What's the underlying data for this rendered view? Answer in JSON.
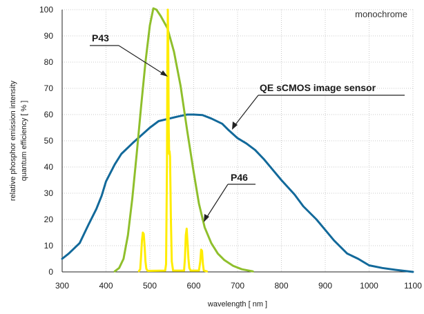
{
  "chart_data": {
    "type": "line",
    "xlabel": "wavelength [ nm ]",
    "ylabel": [
      "relative phosphor emission intensity",
      "quantum efficiency [ % ]"
    ],
    "xlim": [
      300,
      1100
    ],
    "ylim": [
      0,
      100
    ],
    "xticks": [
      300,
      400,
      500,
      600,
      700,
      800,
      900,
      1000,
      1100
    ],
    "yticks": [
      0,
      10,
      20,
      30,
      40,
      50,
      60,
      70,
      80,
      90,
      100
    ],
    "grid": "dotted",
    "corner_note": "monochrome",
    "annotations": [
      {
        "text": "P43",
        "series": "P43"
      },
      {
        "text": "QE sCMOS image sensor",
        "series": "QE sCMOS image sensor"
      },
      {
        "text": "P46",
        "series": "P46"
      }
    ],
    "series": [
      {
        "name": "QE sCMOS image sensor",
        "color": "#12699a",
        "points": [
          [
            300,
            5
          ],
          [
            315,
            7
          ],
          [
            340,
            11
          ],
          [
            360,
            18
          ],
          [
            378,
            24
          ],
          [
            390,
            29
          ],
          [
            400,
            34.5
          ],
          [
            420,
            41
          ],
          [
            435,
            45
          ],
          [
            460,
            49
          ],
          [
            480,
            52
          ],
          [
            500,
            55
          ],
          [
            520,
            57.5
          ],
          [
            545,
            58.5
          ],
          [
            565,
            59.3
          ],
          [
            585,
            60
          ],
          [
            600,
            60
          ],
          [
            620,
            59.8
          ],
          [
            640,
            58.5
          ],
          [
            665,
            56.5
          ],
          [
            680,
            54
          ],
          [
            700,
            51
          ],
          [
            720,
            49
          ],
          [
            740,
            46.5
          ],
          [
            760,
            43
          ],
          [
            780,
            39
          ],
          [
            800,
            35
          ],
          [
            830,
            29.5
          ],
          [
            850,
            25
          ],
          [
            880,
            20
          ],
          [
            900,
            16
          ],
          [
            920,
            12
          ],
          [
            950,
            7
          ],
          [
            975,
            5
          ],
          [
            1000,
            2.5
          ],
          [
            1030,
            1.5
          ],
          [
            1060,
            0.8
          ],
          [
            1100,
            0
          ]
        ]
      },
      {
        "name": "P46",
        "color": "#8fbf2c",
        "points": [
          [
            420,
            0.2
          ],
          [
            430,
            1.5
          ],
          [
            440,
            5
          ],
          [
            450,
            14
          ],
          [
            460,
            28
          ],
          [
            470,
            45
          ],
          [
            480,
            63
          ],
          [
            490,
            80
          ],
          [
            500,
            94
          ],
          [
            508,
            100.5
          ],
          [
            515,
            100
          ],
          [
            525,
            97.5
          ],
          [
            540,
            93
          ],
          [
            555,
            84
          ],
          [
            570,
            71
          ],
          [
            585,
            54
          ],
          [
            600,
            38
          ],
          [
            612,
            26
          ],
          [
            625,
            17
          ],
          [
            640,
            11
          ],
          [
            655,
            7
          ],
          [
            670,
            4.5
          ],
          [
            690,
            2.3
          ],
          [
            710,
            1
          ],
          [
            735,
            0.2
          ]
        ]
      },
      {
        "name": "P43",
        "color": "#ffec00",
        "points": [
          [
            475,
            0.3
          ],
          [
            478,
            1
          ],
          [
            480,
            6
          ],
          [
            482,
            12
          ],
          [
            484,
            15
          ],
          [
            486,
            14.5
          ],
          [
            488,
            10
          ],
          [
            490,
            4
          ],
          [
            492,
            1.2
          ],
          [
            495,
            0.4
          ],
          [
            535,
            0.5
          ],
          [
            537,
            3
          ],
          [
            539,
            40
          ],
          [
            540,
            80
          ],
          [
            541,
            100
          ],
          [
            542,
            85
          ],
          [
            543,
            55
          ],
          [
            544,
            45
          ],
          [
            545,
            46
          ],
          [
            546,
            44
          ],
          [
            548,
            20
          ],
          [
            550,
            4
          ],
          [
            553,
            0.5
          ],
          [
            578,
            0.5
          ],
          [
            580,
            5
          ],
          [
            582,
            14
          ],
          [
            584,
            16.5
          ],
          [
            586,
            11
          ],
          [
            588,
            5
          ],
          [
            590,
            1.5
          ],
          [
            593,
            0.5
          ],
          [
            612,
            0.5
          ],
          [
            615,
            4
          ],
          [
            617,
            8.5
          ],
          [
            619,
            8
          ],
          [
            621,
            3
          ],
          [
            623,
            0.5
          ],
          [
            630,
            0.2
          ]
        ]
      }
    ]
  }
}
